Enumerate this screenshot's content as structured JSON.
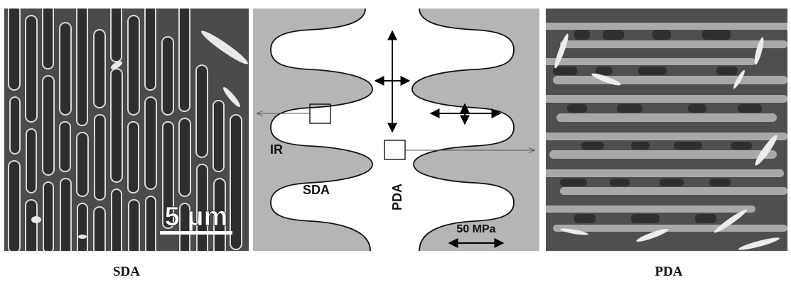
{
  "left_panel": {
    "scale_bar_label": "5 μm"
  },
  "center_panel": {
    "label_ir": "IR",
    "label_sda": "SDA",
    "label_pda": "PDA",
    "stress_scale_label": "50 MPa"
  },
  "captions": {
    "left": "SDA",
    "right": "PDA"
  },
  "colors": {
    "interdendritic": "#b5b5b5",
    "dendrite": "#ffffff",
    "micrograph_bg": "#4a4a4a"
  }
}
